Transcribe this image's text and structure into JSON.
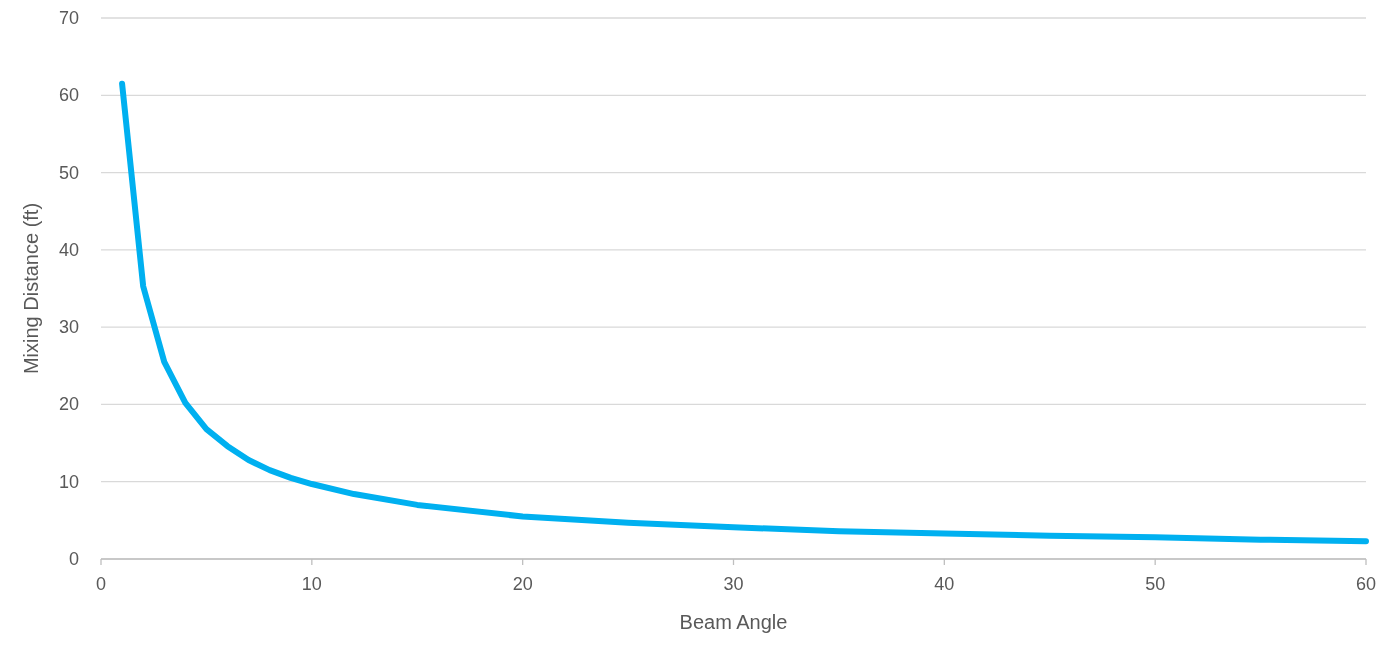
{
  "chart_data": {
    "type": "line",
    "xlabel": "Beam Angle",
    "ylabel": "Mixing Distance (ft)",
    "x": [
      1,
      2,
      3,
      4,
      5,
      6,
      7,
      8,
      9,
      10,
      12,
      15,
      20,
      25,
      30,
      35,
      40,
      45,
      50,
      55,
      60
    ],
    "series": [
      {
        "color": "#00b0f0",
        "values": [
          61.5,
          35.3,
          25.5,
          20.2,
          16.8,
          14.6,
          12.8,
          11.5,
          10.5,
          9.7,
          8.4,
          7.0,
          5.5,
          4.7,
          4.1,
          3.6,
          3.3,
          3.0,
          2.8,
          2.5,
          2.3
        ]
      }
    ],
    "xlim": [
      0,
      60
    ],
    "xticks": [
      0,
      10,
      20,
      30,
      40,
      50,
      60
    ],
    "ylim": [
      0,
      70
    ],
    "yticks": [
      0,
      10,
      20,
      30,
      40,
      50,
      60,
      70
    ],
    "grid": "y",
    "marker": "none",
    "line_style": "solid"
  }
}
